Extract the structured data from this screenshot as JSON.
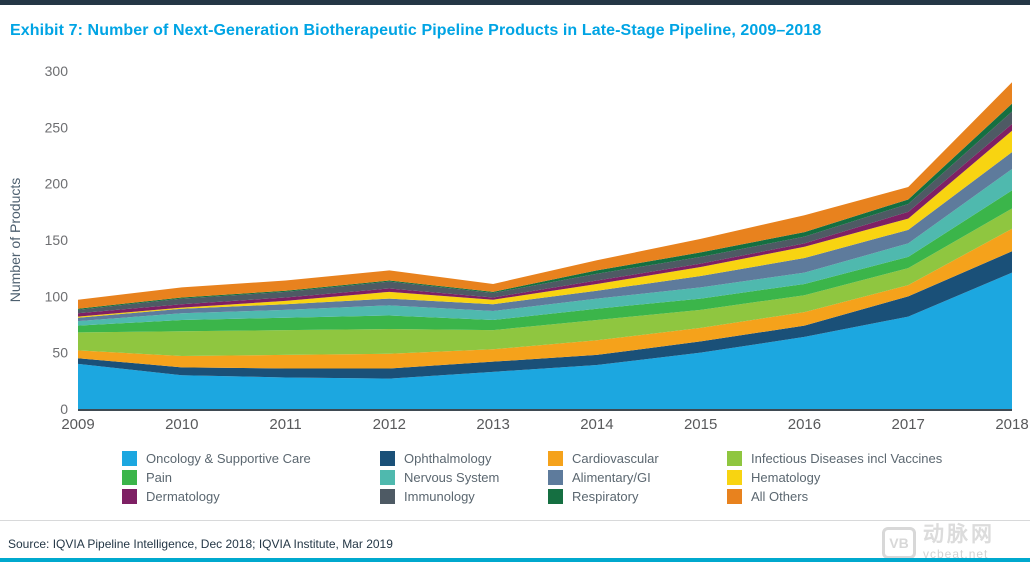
{
  "header": {
    "title": "Exhibit 7: Number of Next-Generation Biotherapeutic Pipeline Products in Late-Stage Pipeline, 2009–2018"
  },
  "footer": {
    "source": "Source: IQVIA Pipeline Intelligence, Dec 2018; IQVIA Institute, Mar 2019"
  },
  "watermark": {
    "logo_text": "VB",
    "brand_cn": "动脉网",
    "brand_url": "vcbeat.net"
  },
  "page_colors": {
    "top_bar": "#243746",
    "bottom_bar": "#00A9CE",
    "title_accent": "#00A4E4",
    "axis_line": "#3F4A52",
    "y_tick_text": "#6D6E71",
    "x_tick_text": "#58595B",
    "y_axis_title_text": "#4D5F6F"
  },
  "chart_data": {
    "type": "area",
    "stacked": true,
    "title": "Exhibit 7: Number of Next-Generation Biotherapeutic Pipeline Products in Late-Stage Pipeline, 2009–2018",
    "xlabel": "",
    "ylabel": "Number of Products",
    "x": [
      2009,
      2010,
      2011,
      2012,
      2013,
      2014,
      2015,
      2016,
      2017,
      2018
    ],
    "ylim": [
      0,
      300
    ],
    "yticks": [
      0,
      50,
      100,
      150,
      200,
      250,
      300
    ],
    "grid": false,
    "legend_position": "bottom",
    "legend_columns": 4,
    "series": [
      {
        "name": "Oncology & Supportive Care",
        "color": "#1CA7E0",
        "values": [
          40,
          30,
          28,
          27,
          33,
          39,
          50,
          64,
          82,
          121
        ]
      },
      {
        "name": "Ophthalmology",
        "color": "#1A5078",
        "values": [
          5,
          7,
          8,
          9,
          9,
          9,
          10,
          10,
          18,
          19
        ]
      },
      {
        "name": "Cardiovascular",
        "color": "#F5A21B",
        "values": [
          7,
          10,
          12,
          13,
          11,
          13,
          12,
          12,
          10,
          20
        ]
      },
      {
        "name": "Infectious Diseases incl Vaccines",
        "color": "#8FC640",
        "values": [
          16,
          22,
          22,
          22,
          17,
          18,
          16,
          15,
          15,
          18
        ]
      },
      {
        "name": "Pain",
        "color": "#3BB54A",
        "values": [
          6,
          10,
          11,
          12,
          9,
          10,
          10,
          10,
          10,
          16
        ]
      },
      {
        "name": "Nervous System",
        "color": "#4FB9AE",
        "values": [
          4,
          6,
          7,
          9,
          8,
          9,
          10,
          10,
          12,
          19
        ]
      },
      {
        "name": "Alimentary/GI",
        "color": "#5E7B9C",
        "values": [
          3,
          4,
          5,
          6,
          6,
          7,
          10,
          13,
          12,
          15
        ]
      },
      {
        "name": "Hematology",
        "color": "#F8D411",
        "values": [
          1,
          1,
          3,
          6,
          4,
          6,
          8,
          10,
          10,
          19
        ]
      },
      {
        "name": "Dermatology",
        "color": "#7E2064",
        "values": [
          3,
          3,
          3,
          3,
          2,
          3,
          3,
          3,
          6,
          6
        ]
      },
      {
        "name": "Immunology",
        "color": "#4E5A64",
        "values": [
          3,
          5,
          5,
          6,
          4,
          6,
          6,
          6,
          7,
          11
        ]
      },
      {
        "name": "Respiratory",
        "color": "#156F41",
        "values": [
          1,
          1,
          1,
          1,
          1,
          3,
          4,
          4,
          4,
          7
        ]
      },
      {
        "name": "All Others",
        "color": "#E8821E",
        "values": [
          8,
          9,
          9,
          9,
          7,
          9,
          12,
          15,
          11,
          19
        ]
      }
    ]
  },
  "layout_hints": {
    "legend_col_lefts": [
      122,
      380,
      548,
      727
    ],
    "legend_row_tops": [
      451,
      470,
      489
    ]
  }
}
